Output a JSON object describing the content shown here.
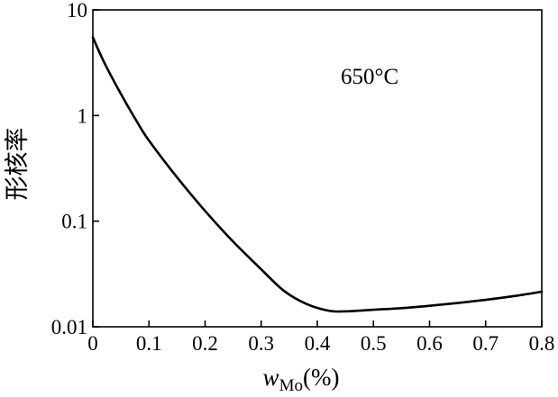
{
  "chart_data": {
    "type": "line",
    "title": "",
    "annotation": "650°C",
    "xlabel": {
      "symbol": "w",
      "subscript": "Mo",
      "unit": "(%)"
    },
    "ylabel": "形核率",
    "xlim": [
      0,
      0.8
    ],
    "ylim": [
      0.01,
      10
    ],
    "yscale": "log",
    "grid": false,
    "x_ticks": [
      0,
      0.1,
      0.2,
      0.3,
      0.4,
      0.5,
      0.6,
      0.7,
      0.8
    ],
    "x_tick_labels": [
      "0",
      "0.1",
      "0.2",
      "0.3",
      "0.4",
      "0.5",
      "0.6",
      "0.7",
      "0.8"
    ],
    "y_ticks": [
      0.01,
      0.1,
      1,
      10
    ],
    "y_tick_labels": [
      "0.01",
      "0.1",
      "1",
      "10"
    ],
    "series": [
      {
        "x": [
          0,
          0.02,
          0.05,
          0.08,
          0.1,
          0.15,
          0.2,
          0.25,
          0.3,
          0.34,
          0.38,
          0.42,
          0.45,
          0.5,
          0.55,
          0.6,
          0.65,
          0.7,
          0.75,
          0.8
        ],
        "y": [
          5.5,
          3.2,
          1.6,
          0.85,
          0.58,
          0.26,
          0.125,
          0.064,
          0.035,
          0.022,
          0.0165,
          0.0142,
          0.014,
          0.0145,
          0.015,
          0.0158,
          0.0168,
          0.018,
          0.0195,
          0.0215
        ]
      }
    ]
  }
}
